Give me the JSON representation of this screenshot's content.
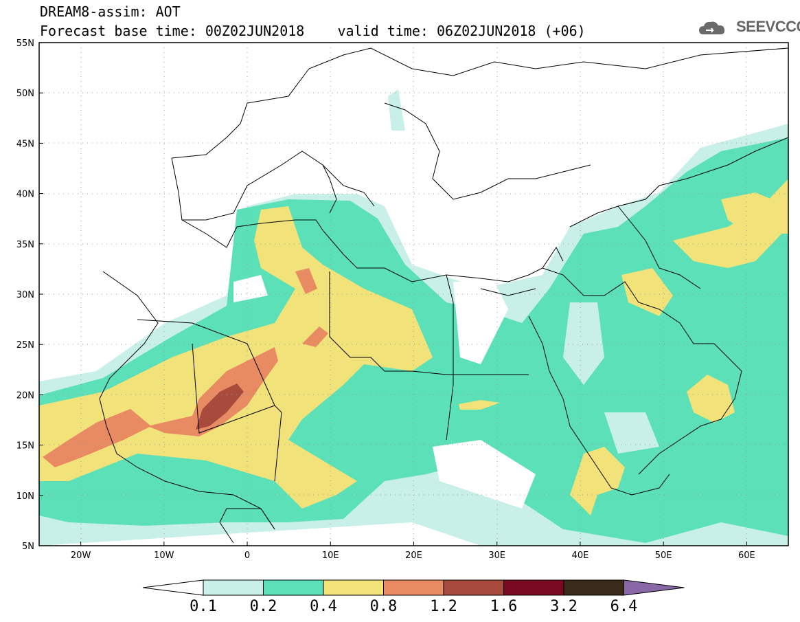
{
  "header": {
    "line1": "DREAM8-assim: AOT",
    "line2": "Forecast base time: 00Z02JUN2018    valid time: 06Z02JUN2018 (+06)"
  },
  "logo": {
    "name": "cloud-icon",
    "text": "SEEVCCC"
  },
  "map": {
    "lat_labels": [
      "55N",
      "50N",
      "45N",
      "40N",
      "35N",
      "30N",
      "25N",
      "20N",
      "15N",
      "10N",
      "5N"
    ],
    "lon_labels": [
      "20W",
      "10W",
      "0",
      "10E",
      "20E",
      "30E",
      "40E",
      "50E",
      "60E"
    ],
    "lat_range": [
      5,
      55
    ],
    "lon_range": [
      -25,
      65
    ],
    "grid": "dotted"
  },
  "colorbar": {
    "labels": [
      "0.1",
      "0.2",
      "0.4",
      "0.8",
      "1.2",
      "1.6",
      "3.2",
      "6.4"
    ],
    "colors": [
      "#ffffff",
      "#c8f0e8",
      "#5ce0b8",
      "#f2e27a",
      "#e88a62",
      "#a84a3c",
      "#7a0a24",
      "#3a2a1a",
      "#8a68a8"
    ]
  }
}
